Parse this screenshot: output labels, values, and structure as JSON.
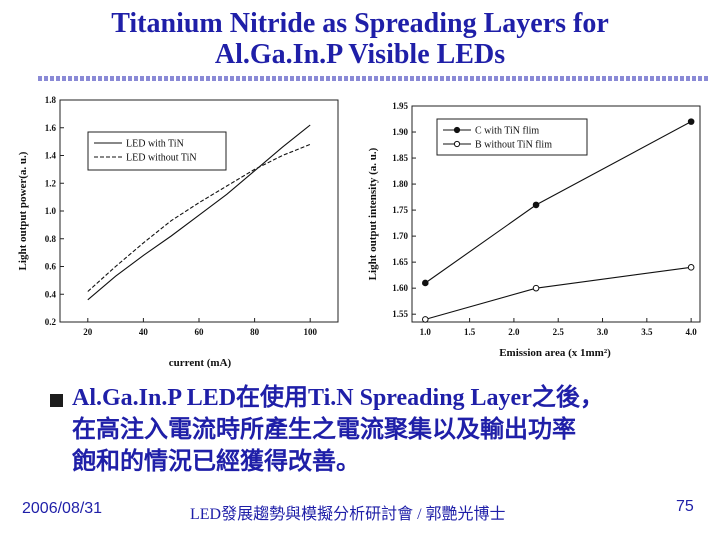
{
  "slide": {
    "title_line1": "Titanium Nitride as Spreading Layers for",
    "title_line2": "Al.Ga.In.P Visible LEDs",
    "bullet_line1": "Al.Ga.In.P LED在使用Ti.N Spreading Layer之後，",
    "bullet_line2": "在高注入電流時所產生之電流聚集以及輸出功率",
    "bullet_line3": "飽和的情況已經獲得改善。",
    "footer_date": "2006/08/31",
    "footer_center": "LED發展趨勢與模擬分析研討會 / 郭艷光博士",
    "page_number": "75",
    "title_color": "#1f1fa8"
  },
  "chart_data": [
    {
      "type": "line",
      "xlabel": "current (mA)",
      "ylabel": "Light output power(a. u.)",
      "xlim": [
        10,
        110
      ],
      "ylim": [
        0.2,
        1.8
      ],
      "xticks": [
        "20",
        "40",
        "60",
        "80",
        "100"
      ],
      "yticks": [
        "0.2",
        "0.4",
        "0.6",
        "0.8",
        "1.0",
        "1.2",
        "1.4",
        "1.6",
        "1.8"
      ],
      "legend_position": "top-left",
      "series": [
        {
          "name": "LED  with  TiN",
          "style": "solid",
          "x": [
            20,
            30,
            40,
            50,
            60,
            70,
            80,
            90,
            100
          ],
          "y": [
            0.36,
            0.53,
            0.68,
            0.82,
            0.97,
            1.12,
            1.29,
            1.46,
            1.62
          ]
        },
        {
          "name": "LED without TiN",
          "style": "dashed",
          "x": [
            20,
            30,
            40,
            50,
            60,
            70,
            80,
            90,
            100
          ],
          "y": [
            0.42,
            0.6,
            0.77,
            0.93,
            1.06,
            1.18,
            1.3,
            1.4,
            1.48
          ]
        }
      ]
    },
    {
      "type": "line",
      "xlabel": "Emission area (x 1mm²)",
      "ylabel": "Light output intensity (a. u.)",
      "xlim": [
        0.85,
        4.1
      ],
      "ylim": [
        1.535,
        1.95
      ],
      "xticks": [
        "1.0",
        "1.5",
        "2.0",
        "2.5",
        "3.0",
        "3.5",
        "4.0"
      ],
      "yticks": [
        "1.55",
        "1.60",
        "1.65",
        "1.70",
        "1.75",
        "1.80",
        "1.85",
        "1.90",
        "1.95"
      ],
      "legend_position": "top-left",
      "series": [
        {
          "name": "C with TiN flim",
          "marker": "filled-circle",
          "x": [
            1.0,
            2.25,
            4.0
          ],
          "y": [
            1.61,
            1.76,
            1.92
          ]
        },
        {
          "name": "B without TiN flim",
          "marker": "open-circle",
          "x": [
            1.0,
            2.25,
            4.0
          ],
          "y": [
            1.54,
            1.6,
            1.64
          ]
        }
      ]
    }
  ]
}
